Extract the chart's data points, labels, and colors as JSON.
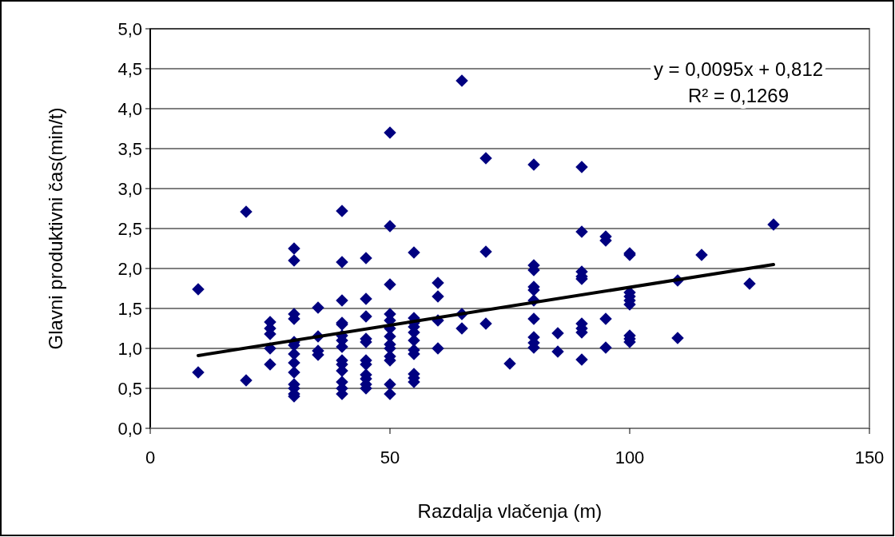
{
  "chart_data": {
    "type": "scatter",
    "xlabel": "Razdalja vlačenja (m)",
    "ylabel": "Glavni produktivni čas(min/t)",
    "xlim": [
      0,
      150
    ],
    "xticks": [
      0,
      50,
      100,
      150
    ],
    "ylim": [
      0,
      5
    ],
    "yticks": [
      {
        "value": 0,
        "label": "0,0"
      },
      {
        "value": 0.5,
        "label": "0,5"
      },
      {
        "value": 1,
        "label": "1,0"
      },
      {
        "value": 1.5,
        "label": "1,5"
      },
      {
        "value": 2,
        "label": "2,0"
      },
      {
        "value": 2.5,
        "label": "2,5"
      },
      {
        "value": 3,
        "label": "3,0"
      },
      {
        "value": 3.5,
        "label": "3,5"
      },
      {
        "value": 4,
        "label": "4,0"
      },
      {
        "value": 4.5,
        "label": "4,5"
      },
      {
        "value": 5,
        "label": "5,0"
      }
    ],
    "grid": "y",
    "marker": "diamond",
    "annotations": [
      "y = 0,0095x + 0,812",
      "R² = 0,1269"
    ],
    "series": [
      {
        "color": "#000080",
        "x": [
          10,
          10,
          20,
          20,
          25,
          25,
          25,
          25,
          25,
          30,
          30,
          30,
          30,
          30,
          30,
          30,
          30,
          30,
          30,
          30,
          30,
          30,
          35,
          35,
          35,
          35,
          40,
          40,
          40,
          40,
          40,
          40,
          40,
          40,
          40,
          40,
          40,
          40,
          40,
          40,
          45,
          45,
          45,
          45,
          45,
          45,
          45,
          45,
          45,
          45,
          45,
          50,
          50,
          50,
          50,
          50,
          50,
          50,
          50,
          50,
          50,
          50,
          50,
          50,
          55,
          55,
          55,
          55,
          55,
          55,
          55,
          55,
          55,
          55,
          55,
          60,
          60,
          60,
          60,
          65,
          65,
          65,
          70,
          70,
          70,
          75,
          80,
          80,
          80,
          80,
          80,
          80,
          80,
          80,
          80,
          80,
          85,
          85,
          90,
          90,
          90,
          90,
          90,
          90,
          90,
          90,
          90,
          95,
          95,
          95,
          95,
          100,
          100,
          100,
          100,
          100,
          100,
          100,
          100,
          100,
          110,
          110,
          115,
          125,
          130
        ],
        "values": [
          1.74,
          0.7,
          2.71,
          0.6,
          1.33,
          1.25,
          1.18,
          1.0,
          0.8,
          2.25,
          2.1,
          1.43,
          1.37,
          1.08,
          1.04,
          0.93,
          0.82,
          0.7,
          0.55,
          0.5,
          0.43,
          0.4,
          1.51,
          1.15,
          0.97,
          0.92,
          2.72,
          2.08,
          1.6,
          1.32,
          1.3,
          1.16,
          1.1,
          1.02,
          0.85,
          0.8,
          0.72,
          0.58,
          0.5,
          0.43,
          2.13,
          1.62,
          1.4,
          1.12,
          1.08,
          0.85,
          0.8,
          0.67,
          0.62,
          0.55,
          0.5,
          3.7,
          2.53,
          1.8,
          1.43,
          1.35,
          1.25,
          1.15,
          1.05,
          1.0,
          0.9,
          0.85,
          0.55,
          0.43,
          2.2,
          1.38,
          1.32,
          1.27,
          1.2,
          1.1,
          0.98,
          0.93,
          0.68,
          0.63,
          0.58,
          1.82,
          1.65,
          1.35,
          1.0,
          4.35,
          1.43,
          1.25,
          3.38,
          2.21,
          1.31,
          0.81,
          3.3,
          2.04,
          1.98,
          1.77,
          1.73,
          1.6,
          1.37,
          1.14,
          1.07,
          1.01,
          1.19,
          0.96,
          3.27,
          2.46,
          1.96,
          1.9,
          1.87,
          1.31,
          1.25,
          1.2,
          0.86,
          2.4,
          2.35,
          1.37,
          1.01,
          2.19,
          2.17,
          1.7,
          1.65,
          1.6,
          1.55,
          1.16,
          1.12,
          1.08,
          1.85,
          1.13,
          2.17,
          1.81,
          2.55
        ]
      },
      {
        "type": "line",
        "marker": "none",
        "color": "#000000",
        "x": [
          10,
          130
        ],
        "values": [
          0.91,
          2.05
        ]
      }
    ]
  }
}
